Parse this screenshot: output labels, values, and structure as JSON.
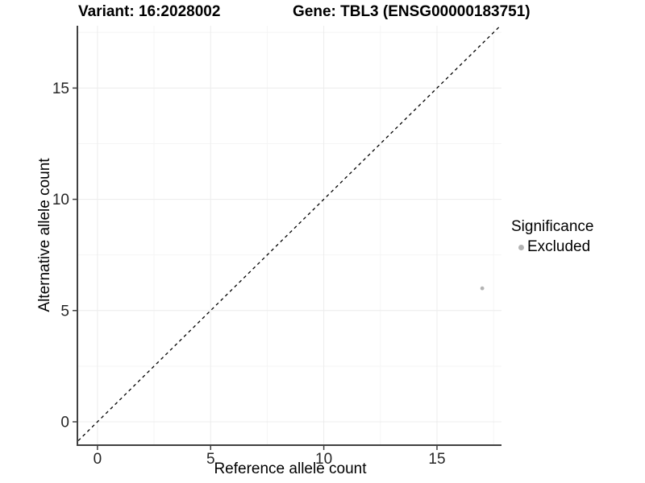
{
  "header": {
    "variant_title": "Variant: 16:2028002",
    "gene_title": "Gene: TBL3 (ENSG00000183751)"
  },
  "chart_data": {
    "type": "scatter",
    "xlabel": "Reference allele count",
    "ylabel": "Alternative allele count",
    "x_ticks": [
      0,
      5,
      10,
      15
    ],
    "y_ticks": [
      0,
      5,
      10,
      15
    ],
    "x_minor_ticks": [
      2.5,
      7.5,
      12.5,
      17.5
    ],
    "y_minor_ticks": [
      2.5,
      7.5,
      12.5,
      17.5
    ],
    "x_range": [
      -0.85,
      17.85
    ],
    "y_range": [
      -1.05,
      17.8
    ],
    "grid": true,
    "points": [
      {
        "x": 17,
        "y": 6,
        "significance": "Excluded"
      }
    ],
    "reference_line": {
      "slope": 1,
      "intercept": 0,
      "style": "dashed"
    },
    "legend": {
      "title": "Significance",
      "position": "right",
      "items": [
        {
          "label": "Excluded",
          "color": "#b3b3b3"
        }
      ]
    },
    "style": {
      "point_color": "#b3b3b3",
      "axis_line_color": "#404040",
      "tick_label_color": "#262626",
      "major_grid_color": "#ececec",
      "minor_grid_color": "#f5f5f5",
      "reference_line_color": "#000000",
      "background": "#ffffff"
    }
  }
}
